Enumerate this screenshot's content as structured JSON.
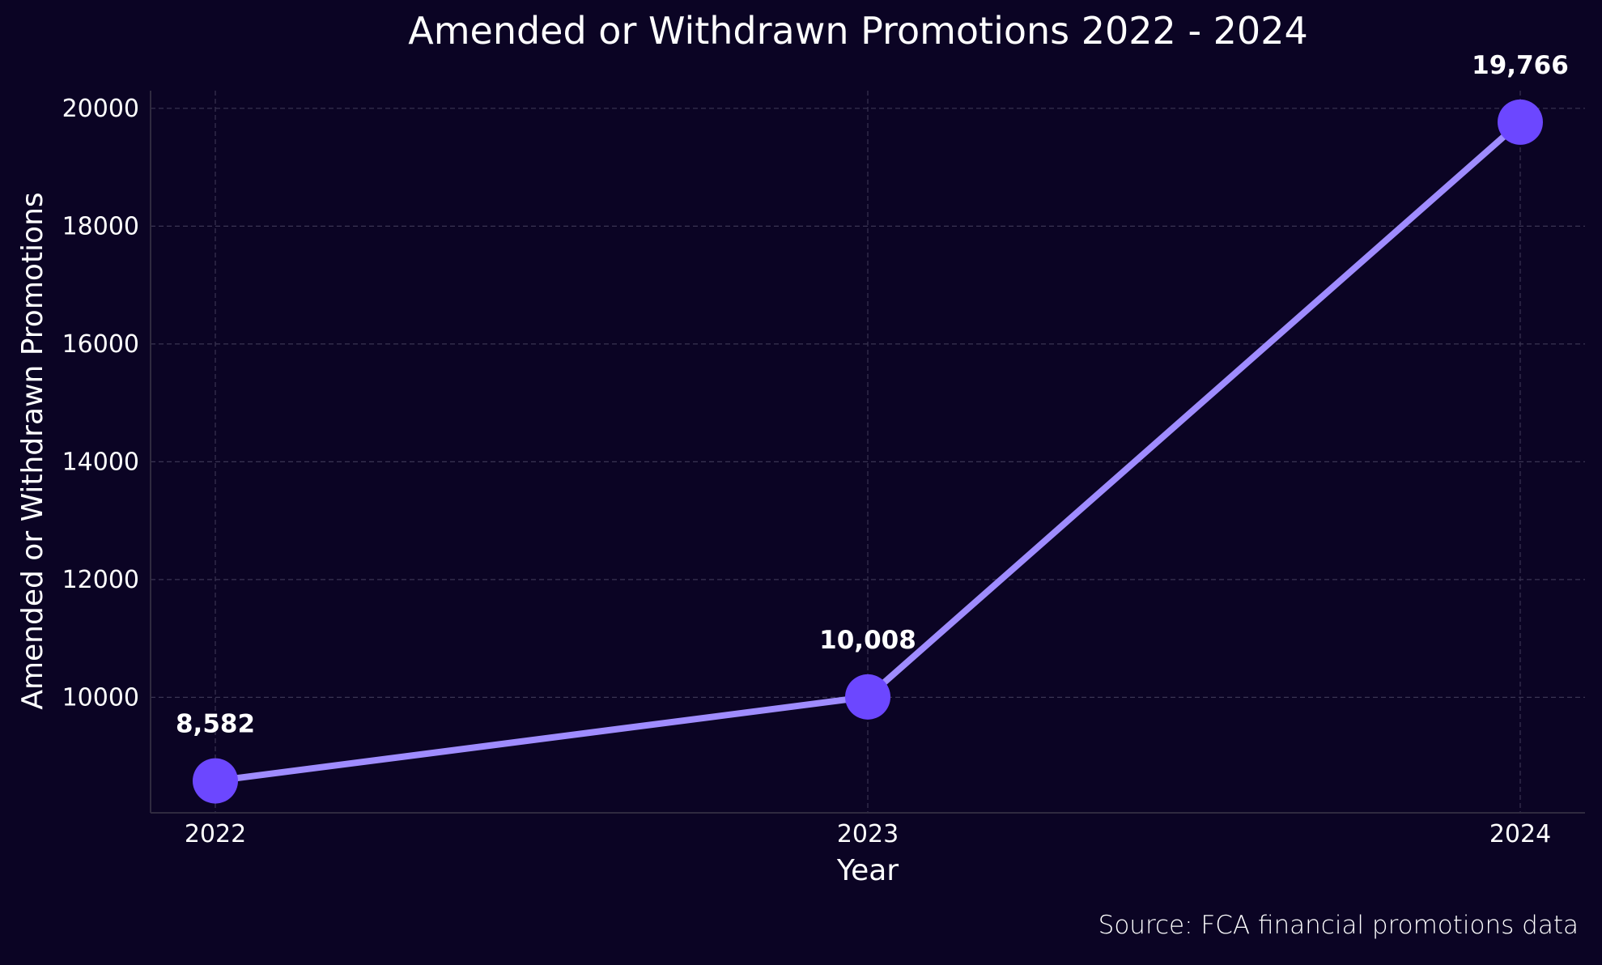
{
  "chart_data": {
    "type": "line",
    "title": "Amended or Withdrawn Promotions 2022 - 2024",
    "xlabel": "Year",
    "ylabel": "Amended or Withdrawn Promotions",
    "categories": [
      "2022",
      "2023",
      "2024"
    ],
    "series": [
      {
        "values": [
          8582,
          10008,
          19766
        ],
        "labels": [
          "8,582",
          "10,008",
          "19,766"
        ],
        "line_color": "#9f8cff",
        "marker_color": "#6c47ff"
      }
    ],
    "yticks": [
      "10000",
      "12000",
      "14000",
      "16000",
      "18000",
      "20000"
    ],
    "ylim": [
      8040,
      20300
    ],
    "grid": true,
    "source": "Source: FCA financial promotions data",
    "colors": {
      "background": "#0b0424",
      "text": "#ffffff",
      "grid": "#3a3452",
      "axis": "#2f2a3f"
    }
  }
}
